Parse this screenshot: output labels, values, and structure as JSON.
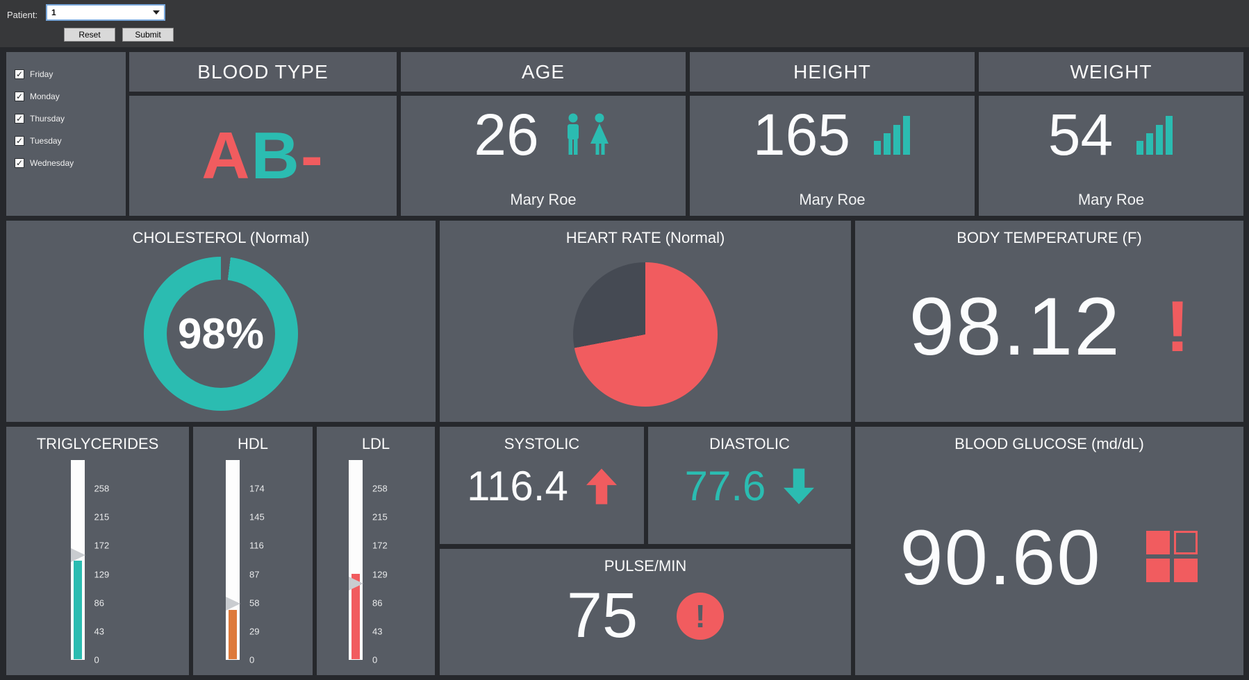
{
  "toolbar": {
    "patient_label": "Patient:",
    "patient_value": "1",
    "reset_label": "Reset",
    "submit_label": "Submit"
  },
  "days": {
    "items": [
      {
        "label": "Friday",
        "checked": true
      },
      {
        "label": "Monday",
        "checked": true
      },
      {
        "label": "Thursday",
        "checked": true
      },
      {
        "label": "Tuesday",
        "checked": true
      },
      {
        "label": "Wednesday",
        "checked": true
      }
    ]
  },
  "colors": {
    "teal": "#2bbcb1",
    "red": "#f15c5f",
    "orange": "#dd7a3c",
    "dark_slice": "#454a53",
    "card": "#575c64",
    "pointer": "#c9ccd0"
  },
  "cards": {
    "blood_type": {
      "title": "BLOOD TYPE",
      "segments": [
        {
          "text": "A",
          "color": "#f15c5f"
        },
        {
          "text": "B",
          "color": "#2bbcb1"
        },
        {
          "text": "-",
          "color": "#f15c5f"
        }
      ]
    },
    "age": {
      "title": "AGE",
      "value": "26",
      "person": "Mary Roe"
    },
    "height": {
      "title": "HEIGHT",
      "value": "165",
      "person": "Mary Roe"
    },
    "weight": {
      "title": "WEIGHT",
      "value": "54",
      "person": "Mary Roe"
    },
    "cholesterol": {
      "title": "CHOLESTEROL (Normal)",
      "percent": 98,
      "percent_label": "98%"
    },
    "heart_rate": {
      "title": "HEART RATE (Normal)",
      "filled_pct": 72,
      "empty_pct": 28
    },
    "body_temperature": {
      "title": "BODY TEMPERATURE (F)",
      "value": "98.12",
      "alert": "!"
    },
    "systolic": {
      "title": "SYSTOLIC",
      "value": "116.4",
      "trend": "up"
    },
    "diastolic": {
      "title": "DIASTOLIC",
      "value": "77.6",
      "trend": "down"
    },
    "pulse": {
      "title": "PULSE/MIN",
      "value": "75",
      "alert": "!"
    },
    "blood_glucose": {
      "title": "BLOOD GLUCOSE (md/dL)",
      "value": "90.60"
    }
  },
  "gauges": [
    {
      "label": "TRIGLYCERIDES",
      "ticks": [
        258,
        215,
        172,
        129,
        86,
        43,
        0
      ],
      "max": 301,
      "value": 148,
      "pointer_value": 158,
      "fill_color": "#2bbcb1"
    },
    {
      "label": "HDL",
      "ticks": [
        174,
        145,
        116,
        87,
        58,
        29,
        0
      ],
      "max": 203,
      "value": 50,
      "pointer_value": 57,
      "fill_color": "#dd7a3c"
    },
    {
      "label": "LDL",
      "ticks": [
        258,
        215,
        172,
        129,
        86,
        43,
        0
      ],
      "max": 301,
      "value": 129,
      "pointer_value": 115,
      "fill_color": "#f15c5f"
    }
  ],
  "chart_data": [
    {
      "type": "pie",
      "subtype": "donut",
      "title": "CHOLESTEROL (Normal)",
      "labels": [
        "normal",
        "remainder"
      ],
      "values": [
        98,
        2
      ],
      "colors": [
        "#2bbcb1",
        "#575c64"
      ],
      "center_label": "98%"
    },
    {
      "type": "pie",
      "title": "HEART RATE (Normal)",
      "labels": [
        "rate",
        "remainder"
      ],
      "values": [
        72,
        28
      ],
      "colors": [
        "#f15c5f",
        "#454a53"
      ]
    },
    {
      "type": "bar",
      "title": "TRIGLYCERIDES",
      "ylim": [
        0,
        301
      ],
      "tick_labels": [
        0,
        43,
        86,
        129,
        172,
        215,
        258
      ],
      "values": [
        148
      ]
    },
    {
      "type": "bar",
      "title": "HDL",
      "ylim": [
        0,
        203
      ],
      "tick_labels": [
        0,
        29,
        58,
        87,
        116,
        145,
        174
      ],
      "values": [
        50
      ]
    },
    {
      "type": "bar",
      "title": "LDL",
      "ylim": [
        0,
        301
      ],
      "tick_labels": [
        0,
        43,
        86,
        129,
        172,
        215,
        258
      ],
      "values": [
        129
      ]
    }
  ]
}
